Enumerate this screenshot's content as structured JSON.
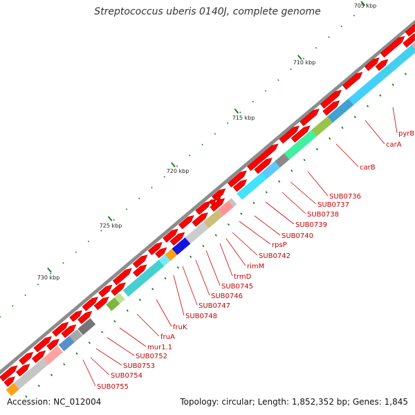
{
  "title": "Streptococcus uberis 0140J, complete genome",
  "footer": {
    "accession": "Accession: NC_012004",
    "summary": "Topology: circular; Length: 1,852,352 bp; Genes: 1,845"
  },
  "scale": {
    "unit": "kbp",
    "labels": [
      "705 kbp",
      "710 kbp",
      "715 kbp",
      "720 kbp",
      "725 kbp",
      "730 kbp"
    ]
  },
  "genes": [
    "pyrB",
    "carA",
    "carB",
    "SUB0736",
    "SUB0737",
    "SUB0738",
    "SUB0739",
    "SUB0740",
    "rpsP",
    "SUB0742",
    "rimM",
    "trmD",
    "SUB0745",
    "SUB0746",
    "SUB0747",
    "SUB0748",
    "fruK",
    "fruA",
    "mur1.1",
    "SUB0752",
    "SUB0753",
    "SUB0754",
    "SUB0755"
  ],
  "colors": {
    "backbone": "#8c8c8c",
    "cds": "#ff0000",
    "tick": "#1f7a1f",
    "gene_label": "#cc0000",
    "leader": "#cc0000"
  }
}
